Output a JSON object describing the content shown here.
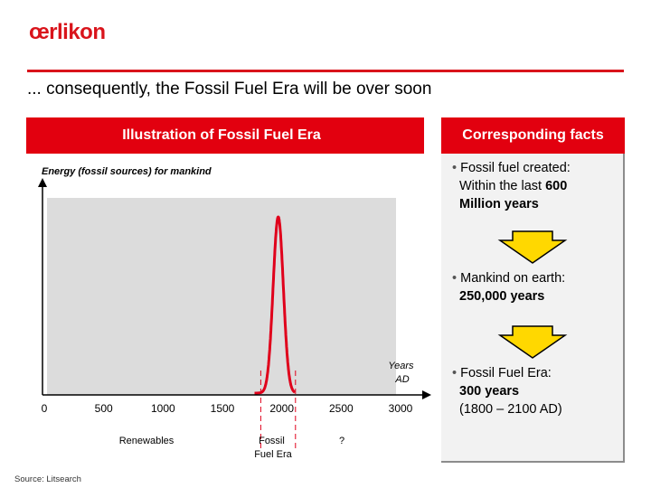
{
  "logo": "œrlikon",
  "headline": "... consequently, the Fossil Fuel Era will be over soon",
  "left_header": "Illustration of Fossil Fuel Era",
  "right_header": "Corresponding facts",
  "source": "Source: Litsearch",
  "colors": {
    "brand_red": "#e2000f",
    "curve": "#e0001b",
    "arrow_fill": "#ffd800",
    "plot_bg": "#dcdcdc"
  },
  "facts": [
    {
      "bullet": "•",
      "line1": "Fossil fuel created:",
      "line2_pre": "Within the last ",
      "line2_bold": "600",
      "line3": "Million years"
    },
    {
      "bullet": "•",
      "line1": "Mankind on earth:",
      "line2_bold": "250,000 years"
    },
    {
      "bullet": "•",
      "line1": "Fossil Fuel Era:",
      "line2_bold": "300 years",
      "line3": "(1800 – 2100 AD)"
    }
  ],
  "arrows": [
    "down-arrow-icon",
    "down-arrow-icon"
  ],
  "chart_data": {
    "type": "area",
    "ylabel": "Energy (fossil sources) for mankind",
    "xlabel": "Years AD",
    "x_ticks": [
      "0",
      "500",
      "1000",
      "1500",
      "2000",
      "2500",
      "3000"
    ],
    "xlim": [
      0,
      3000
    ],
    "peak_x": 1970,
    "spread_years": 43,
    "baseline_start": 1800,
    "baseline_end": 2100,
    "region_labels": [
      "Renewables",
      "Fossil Fuel Era",
      "?"
    ],
    "grid": false
  }
}
